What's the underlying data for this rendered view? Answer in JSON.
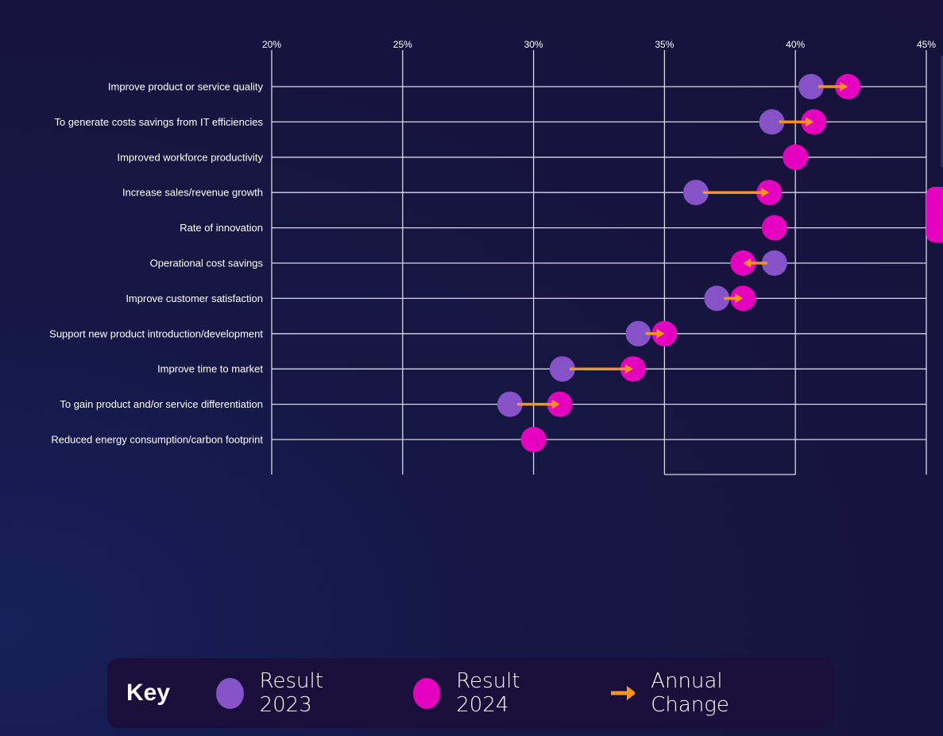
{
  "chart_data": {
    "type": "dumbbell",
    "x_ticks": [
      "20%",
      "25%",
      "30%",
      "35%",
      "40%",
      "45%"
    ],
    "xlim": [
      20,
      45
    ],
    "grid": true,
    "colors": {
      "result_2023": "#8552c8",
      "result_2024": "#e600c0",
      "annual_change": "#f7931e"
    },
    "categories": [
      "Improve product or service quality",
      "To generate costs savings from IT efficiencies",
      "Improved workforce productivity",
      "Increase sales/revenue growth",
      "Rate of innovation",
      "Operational cost savings",
      "Improve customer satisfaction",
      "Support new product introduction/development",
      "Improve time to market",
      "To gain product and/or service differentiation",
      "Reduced energy consumption/carbon footprint"
    ],
    "series": [
      {
        "name": "Result 2023",
        "values": [
          40.6,
          39.1,
          40.0,
          36.2,
          39.2,
          39.2,
          37.0,
          34.0,
          31.1,
          29.1,
          30.0
        ]
      },
      {
        "name": "Result 2024",
        "values": [
          42.0,
          40.7,
          40.0,
          39.0,
          39.2,
          38.0,
          38.0,
          35.0,
          33.8,
          31.0,
          30.0
        ]
      }
    ],
    "legend_position": "bottom"
  },
  "legend": {
    "title": "Key",
    "result_2023": "Result 2023",
    "result_2024": "Result 2024",
    "annual_change": "Annual Change"
  }
}
